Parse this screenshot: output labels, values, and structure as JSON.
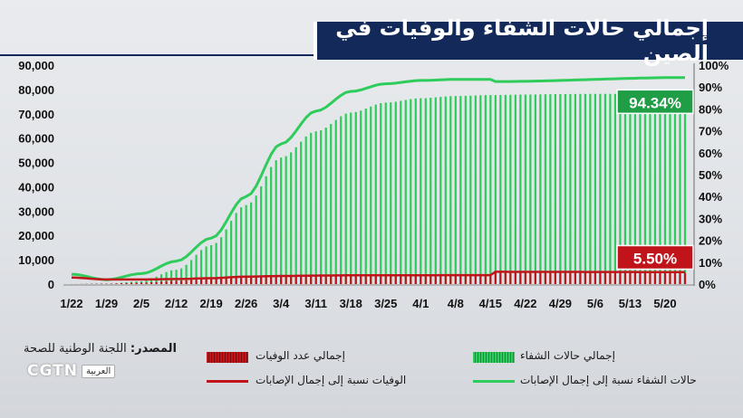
{
  "title": "إجمالي حالات الشفاء والوفيات في الصين",
  "source_label": "المصدر:",
  "source_value": "اللجنة الوطنية للصحة",
  "logo": {
    "name": "CGTN",
    "sub": "العربية"
  },
  "colors": {
    "recovered": "#2ecc5a",
    "death": "#c0141a",
    "title_bg": "#13295a",
    "badge_green": "#1f9e46",
    "badge_red": "#c0141a"
  },
  "legend": {
    "recovered_bar": "إجمالي حالات الشفاء",
    "death_bar": "إجمالي عدد الوفيات",
    "recovered_line": "حالات الشفاء نسبة إلى إجمال الإصابات",
    "death_line": "الوفيات نسبة إلى إجمال الإصابات"
  },
  "chart_data": {
    "type": "bar",
    "x_ticks": [
      "1/22",
      "1/29",
      "2/5",
      "2/12",
      "2/19",
      "2/26",
      "3/4",
      "3/11",
      "3/18",
      "3/25",
      "4/1",
      "4/8",
      "4/15",
      "4/22",
      "4/29",
      "5/6",
      "5/13",
      "5/20"
    ],
    "left_ticks": [
      "0",
      "10,000",
      "20,000",
      "30,000",
      "40,000",
      "50,000",
      "60,000",
      "70,000",
      "80,000",
      "90,000"
    ],
    "right_ticks": [
      "0%",
      "10%",
      "20%",
      "30%",
      "40%",
      "50%",
      "60%",
      "70%",
      "80%",
      "90%",
      "100%"
    ],
    "ylim_left": [
      0,
      90000
    ],
    "ylim_right": [
      0,
      100
    ],
    "start_date": "1/22",
    "end_date": "5/24",
    "recovered_counts_keypoints": [
      [
        "1/22",
        30
      ],
      [
        "1/29",
        130
      ],
      [
        "2/5",
        1150
      ],
      [
        "2/12",
        5900
      ],
      [
        "2/19",
        16000
      ],
      [
        "2/26",
        32500
      ],
      [
        "3/4",
        52000
      ],
      [
        "3/11",
        62800
      ],
      [
        "3/18",
        70500
      ],
      [
        "3/25",
        74600
      ],
      [
        "4/1",
        76400
      ],
      [
        "4/8",
        77300
      ],
      [
        "4/15",
        77700
      ],
      [
        "4/22",
        77900
      ],
      [
        "4/29",
        78100
      ],
      [
        "5/6",
        78200
      ],
      [
        "5/13",
        78200
      ],
      [
        "5/24",
        78300
      ]
    ],
    "deaths_counts_keypoints": [
      [
        "1/22",
        17
      ],
      [
        "1/29",
        170
      ],
      [
        "2/5",
        560
      ],
      [
        "2/12",
        1370
      ],
      [
        "2/19",
        2120
      ],
      [
        "2/26",
        2720
      ],
      [
        "3/4",
        2980
      ],
      [
        "3/11",
        3170
      ],
      [
        "3/18",
        3250
      ],
      [
        "3/25",
        3290
      ],
      [
        "4/1",
        3320
      ],
      [
        "4/8",
        3340
      ],
      [
        "4/15",
        3342
      ],
      [
        "4/16",
        4632
      ],
      [
        "5/24",
        4634
      ]
    ],
    "recovered_pct_keypoints": [
      [
        "1/22",
        4.5
      ],
      [
        "1/29",
        2
      ],
      [
        "2/5",
        4.8
      ],
      [
        "2/12",
        10.5
      ],
      [
        "2/19",
        21
      ],
      [
        "2/26",
        40
      ],
      [
        "3/4",
        64
      ],
      [
        "3/11",
        79
      ],
      [
        "3/18",
        88
      ],
      [
        "3/25",
        91.5
      ],
      [
        "4/1",
        93
      ],
      [
        "4/8",
        93.5
      ],
      [
        "4/15",
        93.5
      ],
      [
        "4/16",
        92.5
      ],
      [
        "5/24",
        94.34
      ]
    ],
    "deaths_pct_keypoints": [
      [
        "1/22",
        3
      ],
      [
        "1/29",
        2.1
      ],
      [
        "2/5",
        2.1
      ],
      [
        "2/12",
        2.3
      ],
      [
        "2/19",
        2.7
      ],
      [
        "2/26",
        3.4
      ],
      [
        "3/4",
        3.7
      ],
      [
        "3/11",
        3.9
      ],
      [
        "3/18",
        4
      ],
      [
        "4/15",
        4.1
      ],
      [
        "4/16",
        5.6
      ],
      [
        "5/24",
        5.5
      ]
    ],
    "labels": {
      "recovered_pct": "94.34%",
      "death_pct": "5.50%"
    }
  }
}
